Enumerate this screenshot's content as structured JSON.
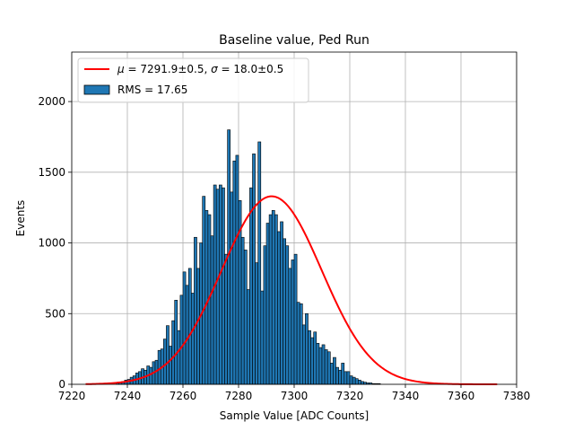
{
  "chart_data": {
    "type": "bar",
    "title": "Baseline value, Ped Run",
    "xlabel": "Sample Value [ADC Counts]",
    "ylabel": "Events",
    "xlim": [
      7220,
      7380
    ],
    "ylim": [
      0,
      2350
    ],
    "x_ticks": [
      7220,
      7240,
      7260,
      7280,
      7300,
      7320,
      7340,
      7360,
      7380
    ],
    "y_ticks": [
      0,
      500,
      1000,
      1500,
      2000
    ],
    "x_tick_labels": [
      "7220",
      "7240",
      "7260",
      "7280",
      "7300",
      "7320",
      "7340",
      "7360",
      "7380"
    ],
    "y_tick_labels": [
      "0",
      "500",
      "1000",
      "1500",
      "2000"
    ],
    "grid": true,
    "legend_position": "top-left",
    "histogram": {
      "name": "RMS = 17.65",
      "color": "#1f77b4",
      "edge_color": "#000000",
      "bin_start": 7236,
      "bin_width": 1,
      "counts": [
        10,
        15,
        20,
        30,
        35,
        50,
        60,
        80,
        90,
        110,
        100,
        130,
        120,
        160,
        170,
        240,
        250,
        320,
        415,
        270,
        450,
        595,
        380,
        630,
        795,
        700,
        820,
        645,
        1040,
        820,
        1000,
        1330,
        1230,
        1200,
        1050,
        1410,
        1380,
        1410,
        1390,
        920,
        1800,
        1360,
        1580,
        1620,
        1300,
        1040,
        950,
        670,
        1390,
        1630,
        860,
        1715,
        660,
        980,
        1140,
        1200,
        1230,
        1200,
        1080,
        1150,
        1030,
        980,
        820,
        880,
        920,
        580,
        570,
        420,
        500,
        380,
        330,
        370,
        290,
        260,
        280,
        245,
        230,
        150,
        190,
        120,
        100,
        150,
        90,
        90,
        60,
        50,
        40,
        30,
        20,
        15,
        10,
        10,
        5,
        5,
        5
      ]
    },
    "fit": {
      "name": "$\\mu = 7291.9\\pm0.5, \\sigma = 18.0\\pm0.5$",
      "label_parts": {
        "mu_symbol": "μ",
        "mu_value": " = 7291.9±0.5, ",
        "sigma_symbol": "σ",
        "sigma_value": " = 18.0±0.5"
      },
      "color": "#ff0000",
      "mu": 7291.9,
      "sigma": 18.0,
      "amplitude": 1330,
      "x_range": [
        7225,
        7373
      ]
    }
  }
}
